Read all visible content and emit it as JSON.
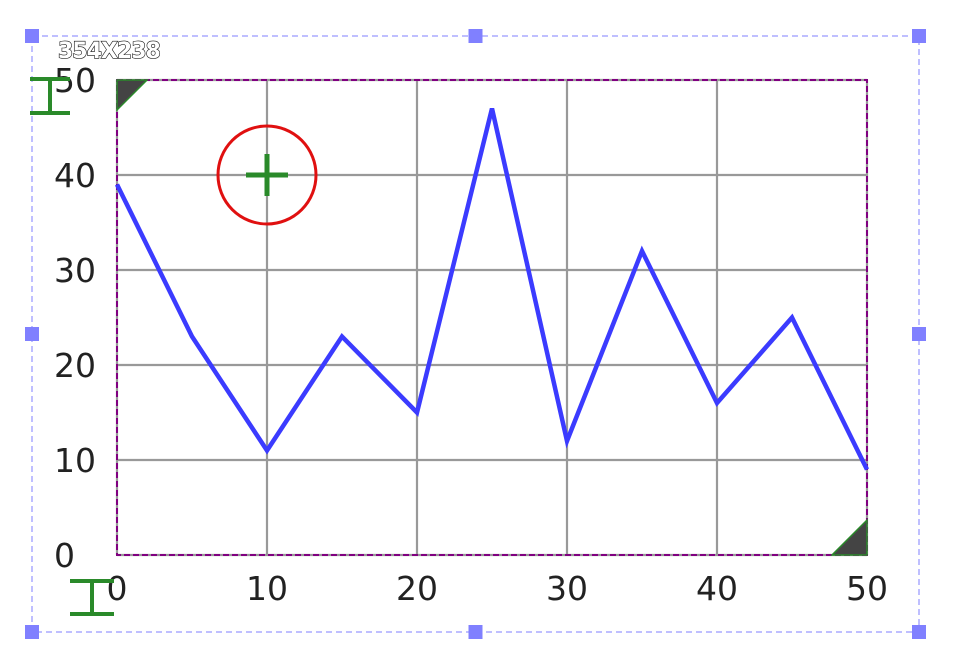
{
  "chart_data": {
    "type": "line",
    "x": [
      0,
      5,
      10,
      15,
      20,
      25,
      30,
      35,
      40,
      45,
      50
    ],
    "y": [
      39,
      23,
      11,
      23,
      15,
      47,
      12,
      32,
      16,
      25,
      9
    ],
    "xlim": [
      0,
      50
    ],
    "ylim": [
      0,
      50
    ],
    "xticks": [
      "0",
      "10",
      "20",
      "30",
      "40",
      "50"
    ],
    "yticks": [
      "0",
      "10",
      "20",
      "30",
      "40",
      "50"
    ],
    "grid": true,
    "line_color": "#3b3bff",
    "title": "",
    "xlabel": "",
    "ylabel": ""
  },
  "overlay": {
    "size_label": "354X238",
    "crosshair_target": {
      "x": 10,
      "y": 40
    },
    "selection_color": "#aaaaff",
    "handle_color": "#8080ff",
    "frame_color": "#800080",
    "cursor_color": "#2a8a2a",
    "target_ring_color": "#e01010"
  }
}
